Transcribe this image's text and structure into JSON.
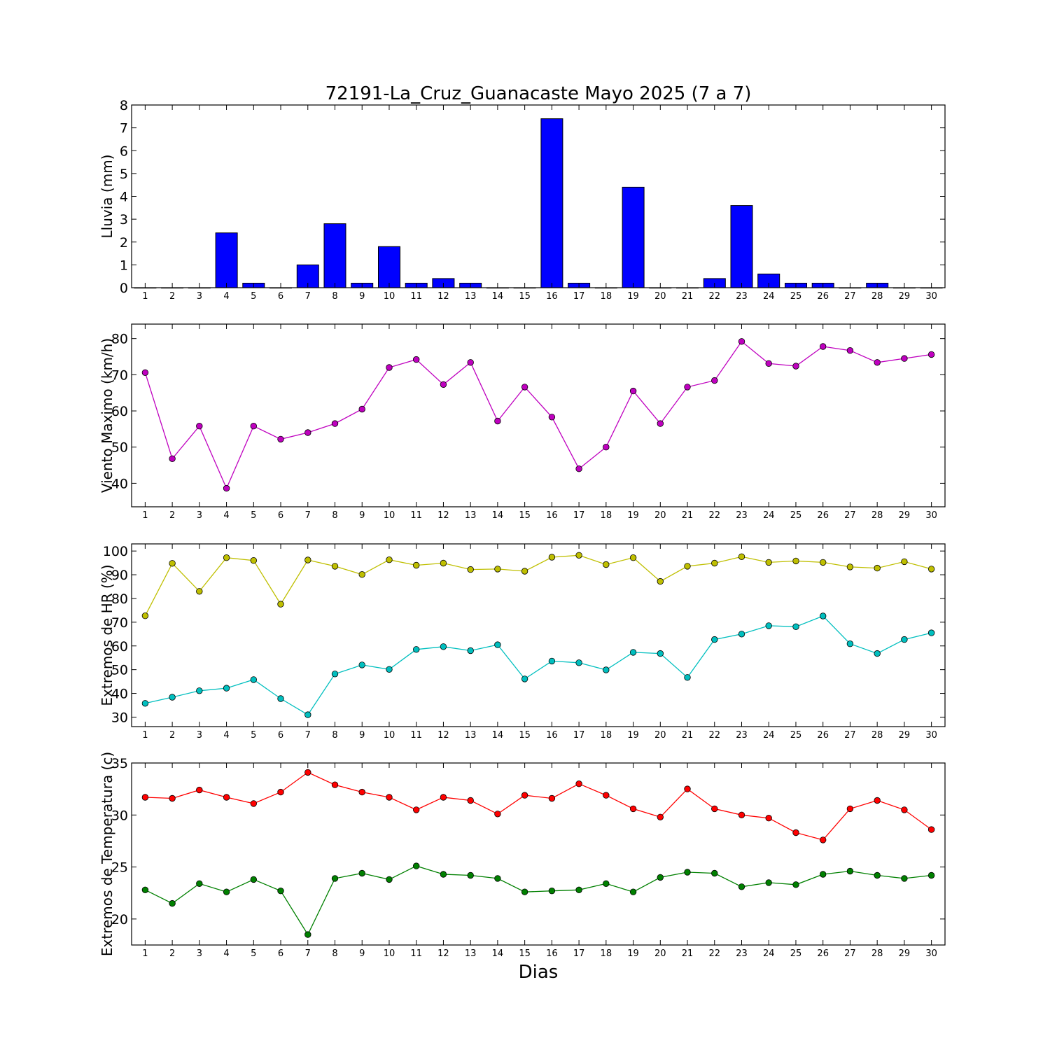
{
  "title": "72191-La_Cruz_Guanacaste Mayo 2025  (7 a 7)",
  "xlabel": "Dias",
  "chart_data": [
    {
      "type": "bar",
      "ylabel": "Lluvia (mm)",
      "ylim": [
        0,
        8
      ],
      "yticks": [
        0,
        1,
        2,
        3,
        4,
        5,
        6,
        7,
        8
      ],
      "x": [
        1,
        2,
        3,
        4,
        5,
        6,
        7,
        8,
        9,
        10,
        11,
        12,
        13,
        14,
        15,
        16,
        17,
        18,
        19,
        20,
        21,
        22,
        23,
        24,
        25,
        26,
        27,
        28,
        29,
        30
      ],
      "series": [
        {
          "color": "#0000ff",
          "values": [
            0,
            0,
            0,
            2.4,
            0.2,
            0,
            1.0,
            2.8,
            0.2,
            1.8,
            0.2,
            0.4,
            0.2,
            0,
            0,
            7.4,
            0.2,
            0,
            4.4,
            0,
            0,
            0.4,
            3.6,
            0.6,
            0.2,
            0.2,
            0,
            0.2,
            0,
            0
          ]
        }
      ]
    },
    {
      "type": "line",
      "ylabel": "Viento Maximo (km/h)",
      "ylim": [
        33.5,
        84
      ],
      "yticks": [
        40,
        50,
        60,
        70,
        80
      ],
      "x": [
        1,
        2,
        3,
        4,
        5,
        6,
        7,
        8,
        9,
        10,
        11,
        12,
        13,
        14,
        15,
        16,
        17,
        18,
        19,
        20,
        21,
        22,
        23,
        24,
        25,
        26,
        27,
        28,
        29,
        30
      ],
      "series": [
        {
          "color": "#bf00bf",
          "values": [
            70.6,
            46.8,
            55.8,
            38.6,
            55.8,
            52.2,
            54.0,
            56.5,
            60.5,
            72.0,
            74.2,
            67.3,
            73.4,
            57.2,
            66.6,
            58.3,
            44.0,
            50.0,
            65.5,
            56.5,
            66.6,
            68.4,
            79.2,
            73.1,
            72.4,
            77.8,
            76.7,
            73.4,
            74.5,
            75.6
          ]
        }
      ]
    },
    {
      "type": "line",
      "ylabel": "Extremos de HR (%)",
      "ylim": [
        26,
        103
      ],
      "yticks": [
        30,
        40,
        50,
        60,
        70,
        80,
        90,
        100
      ],
      "x": [
        1,
        2,
        3,
        4,
        5,
        6,
        7,
        8,
        9,
        10,
        11,
        12,
        13,
        14,
        15,
        16,
        17,
        18,
        19,
        20,
        21,
        22,
        23,
        24,
        25,
        26,
        27,
        28,
        29,
        30
      ],
      "series": [
        {
          "color": "#bfbf00",
          "values": [
            72.7,
            94.8,
            83.0,
            97.2,
            96.0,
            77.6,
            96.2,
            93.6,
            90.1,
            96.3,
            94.0,
            94.9,
            92.2,
            92.4,
            91.5,
            97.4,
            98.2,
            94.3,
            97.2,
            87.2,
            93.6,
            94.9,
            97.6,
            95.2,
            95.8,
            95.2,
            93.3,
            92.8,
            95.5,
            92.4
          ]
        },
        {
          "color": "#00bfbf",
          "values": [
            35.8,
            38.4,
            41.1,
            42.2,
            45.8,
            37.8,
            31.0,
            48.2,
            52.0,
            50.1,
            58.5,
            59.7,
            58.0,
            60.5,
            46.1,
            53.6,
            52.9,
            49.9,
            57.3,
            56.8,
            46.7,
            62.7,
            65.0,
            68.5,
            68.1,
            72.6,
            60.9,
            56.8,
            62.7,
            65.5
          ]
        }
      ]
    },
    {
      "type": "line",
      "ylabel": "Extremos de Temperatura (c)",
      "ylim": [
        17.5,
        35
      ],
      "yticks": [
        20,
        25,
        30,
        35
      ],
      "x": [
        1,
        2,
        3,
        4,
        5,
        6,
        7,
        8,
        9,
        10,
        11,
        12,
        13,
        14,
        15,
        16,
        17,
        18,
        19,
        20,
        21,
        22,
        23,
        24,
        25,
        26,
        27,
        28,
        29,
        30
      ],
      "series": [
        {
          "color": "#ff0000",
          "values": [
            31.7,
            31.6,
            32.4,
            31.7,
            31.1,
            32.2,
            34.1,
            32.9,
            32.2,
            31.7,
            30.5,
            31.7,
            31.4,
            30.1,
            31.9,
            31.6,
            33.0,
            31.9,
            30.6,
            29.8,
            32.5,
            30.6,
            30.0,
            29.7,
            28.3,
            27.6,
            30.6,
            31.4,
            30.5,
            28.6
          ]
        },
        {
          "color": "#008000",
          "values": [
            22.8,
            21.5,
            23.4,
            22.6,
            23.8,
            22.7,
            18.5,
            23.9,
            24.4,
            23.8,
            25.1,
            24.3,
            24.2,
            23.9,
            22.6,
            22.7,
            22.8,
            23.4,
            22.6,
            24.0,
            24.5,
            24.4,
            23.1,
            23.5,
            23.3,
            24.3,
            24.6,
            24.2,
            23.9,
            24.2
          ]
        }
      ]
    }
  ]
}
